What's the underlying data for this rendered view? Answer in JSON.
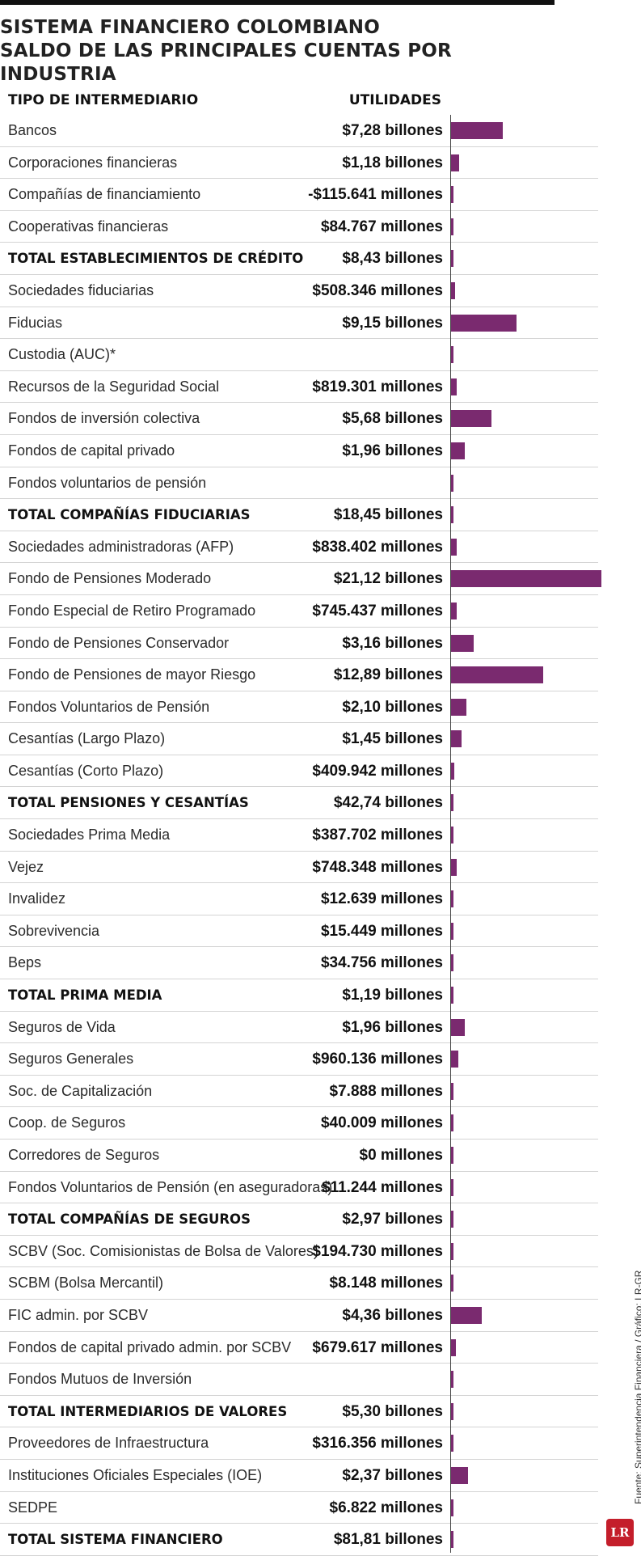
{
  "title": {
    "line1": "SISTEMA FINANCIERO COLOMBIANO",
    "line2": "SALDO DE LAS PRINCIPALES CUENTAS POR INDUSTRIA"
  },
  "headers": {
    "type": "TIPO DE INTERMEDIARIO",
    "utilities": "UTILIDADES"
  },
  "source": "Fuente: Superintendencia Financiera / Gráfico: LR-GR",
  "logo": "LR",
  "colors": {
    "bar": "#7a2a6f",
    "logo": "#c41e2b"
  },
  "chart_data": {
    "type": "bar",
    "orientation": "horizontal",
    "title": "SISTEMA FINANCIERO COLOMBIANO - SALDO DE LAS PRINCIPALES CUENTAS POR INDUSTRIA",
    "xlabel": "UTILIDADES (billones de pesos)",
    "ylabel": "TIPO DE INTERMEDIARIO",
    "xlim": [
      0,
      21.12
    ],
    "rows": [
      {
        "label": "Bancos",
        "value_text": "$7,28 billones",
        "value": 7.28,
        "bar": true,
        "total": false
      },
      {
        "label": "Corporaciones financieras",
        "value_text": "$1,18 billones",
        "value": 1.18,
        "bar": true,
        "total": false
      },
      {
        "label": "Compañías de financiamiento",
        "value_text": "-$115.641 millones",
        "value": -0.115641,
        "bar": true,
        "total": false
      },
      {
        "label": "Cooperativas financieras",
        "value_text": "$84.767 millones",
        "value": 0.084767,
        "bar": true,
        "total": false
      },
      {
        "label": "TOTAL ESTABLECIMIENTOS DE CRÉDITO",
        "value_text": "$8,43 billones",
        "value": 8.43,
        "bar": false,
        "total": true
      },
      {
        "label": "Sociedades fiduciarias",
        "value_text": "$508.346 millones",
        "value": 0.508346,
        "bar": true,
        "total": false
      },
      {
        "label": "Fiducias",
        "value_text": "$9,15 billones",
        "value": 9.15,
        "bar": true,
        "total": false
      },
      {
        "label": "Custodia (AUC)*",
        "value_text": "",
        "value": 0,
        "bar": false,
        "total": false
      },
      {
        "label": "Recursos de la Seguridad Social",
        "value_text": "$819.301 millones",
        "value": 0.819301,
        "bar": true,
        "total": false
      },
      {
        "label": "Fondos de inversión colectiva",
        "value_text": "$5,68 billones",
        "value": 5.68,
        "bar": true,
        "total": false
      },
      {
        "label": "Fondos de capital privado",
        "value_text": "$1,96 billones",
        "value": 1.96,
        "bar": true,
        "total": false
      },
      {
        "label": "Fondos voluntarios de pensión",
        "value_text": "",
        "value": 0,
        "bar": false,
        "total": false
      },
      {
        "label": "TOTAL COMPAÑÍAS FIDUCIARIAS",
        "value_text": "$18,45 billones",
        "value": 18.45,
        "bar": false,
        "total": true
      },
      {
        "label": "Sociedades administradoras (AFP)",
        "value_text": "$838.402 millones",
        "value": 0.838402,
        "bar": true,
        "total": false
      },
      {
        "label": "Fondo de Pensiones Moderado",
        "value_text": "$21,12 billones",
        "value": 21.12,
        "bar": true,
        "total": false
      },
      {
        "label": "Fondo Especial de Retiro Programado",
        "value_text": "$745.437 millones",
        "value": 0.745437,
        "bar": true,
        "total": false
      },
      {
        "label": "Fondo de Pensiones Conservador",
        "value_text": "$3,16 billones",
        "value": 3.16,
        "bar": true,
        "total": false
      },
      {
        "label": "Fondo de Pensiones de mayor Riesgo",
        "value_text": "$12,89 billones",
        "value": 12.89,
        "bar": true,
        "total": false
      },
      {
        "label": "Fondos Voluntarios de Pensión",
        "value_text": "$2,10 billones",
        "value": 2.1,
        "bar": true,
        "total": false
      },
      {
        "label": "Cesantías (Largo Plazo)",
        "value_text": "$1,45 billones",
        "value": 1.45,
        "bar": true,
        "total": false
      },
      {
        "label": "Cesantías (Corto Plazo)",
        "value_text": "$409.942 millones",
        "value": 0.409942,
        "bar": true,
        "total": false
      },
      {
        "label": "TOTAL PENSIONES Y CESANTÍAS",
        "value_text": "$42,74 billones",
        "value": 42.74,
        "bar": false,
        "total": true
      },
      {
        "label": "Sociedades Prima Media",
        "value_text": "$387.702 millones",
        "value": 0.387702,
        "bar": true,
        "total": false
      },
      {
        "label": "Vejez",
        "value_text": "$748.348 millones",
        "value": 0.748348,
        "bar": true,
        "total": false
      },
      {
        "label": "Invalidez",
        "value_text": "$12.639 millones",
        "value": 0.012639,
        "bar": true,
        "total": false
      },
      {
        "label": "Sobrevivencia",
        "value_text": "$15.449 millones",
        "value": 0.015449,
        "bar": true,
        "total": false
      },
      {
        "label": "Beps",
        "value_text": "$34.756 millones",
        "value": 0.034756,
        "bar": true,
        "total": false
      },
      {
        "label": "TOTAL PRIMA MEDIA",
        "value_text": "$1,19 billones",
        "value": 1.19,
        "bar": false,
        "total": true
      },
      {
        "label": "Seguros de Vida",
        "value_text": "$1,96 billones",
        "value": 1.96,
        "bar": true,
        "total": false
      },
      {
        "label": "Seguros Generales",
        "value_text": "$960.136 millones",
        "value": 0.960136,
        "bar": true,
        "total": false
      },
      {
        "label": "Soc. de Capitalización",
        "value_text": "$7.888 millones",
        "value": 0.007888,
        "bar": true,
        "total": false
      },
      {
        "label": "Coop. de Seguros",
        "value_text": "$40.009 millones",
        "value": 0.040009,
        "bar": true,
        "total": false
      },
      {
        "label": "Corredores de Seguros",
        "value_text": "$0 millones",
        "value": 0,
        "bar": true,
        "total": false
      },
      {
        "label": "Fondos Voluntarios de Pensión (en aseguradoras)",
        "value_text": "$11.244 millones",
        "value": 0.011244,
        "bar": true,
        "total": false
      },
      {
        "label": "TOTAL COMPAÑÍAS DE SEGUROS",
        "value_text": "$2,97 billones",
        "value": 2.97,
        "bar": false,
        "total": true
      },
      {
        "label": "SCBV (Soc. Comisionistas de Bolsa de Valores)",
        "value_text": "$194.730 millones",
        "value": 0.19473,
        "bar": true,
        "total": false
      },
      {
        "label": "SCBM (Bolsa Mercantil)",
        "value_text": "$8.148 millones",
        "value": 0.008148,
        "bar": true,
        "total": false
      },
      {
        "label": "FIC admin. por SCBV",
        "value_text": "$4,36 billones",
        "value": 4.36,
        "bar": true,
        "total": false
      },
      {
        "label": "Fondos de capital privado admin. por SCBV",
        "value_text": "$679.617 millones",
        "value": 0.679617,
        "bar": true,
        "total": false
      },
      {
        "label": "Fondos Mutuos de Inversión",
        "value_text": "",
        "value": 0,
        "bar": false,
        "total": false
      },
      {
        "label": "TOTAL INTERMEDIARIOS DE VALORES",
        "value_text": "$5,30 billones",
        "value": 5.3,
        "bar": false,
        "total": true
      },
      {
        "label": "Proveedores de Infraestructura",
        "value_text": "$316.356 millones",
        "value": 0.316356,
        "bar": true,
        "total": false
      },
      {
        "label": "Instituciones Oficiales Especiales (IOE)",
        "value_text": "$2,37 billones",
        "value": 2.37,
        "bar": true,
        "total": false
      },
      {
        "label": "SEDPE",
        "value_text": "$6.822 millones",
        "value": 0.006822,
        "bar": true,
        "total": false
      },
      {
        "label": "TOTAL SISTEMA FINANCIERO",
        "value_text": "$81,81 billones",
        "value": 81.81,
        "bar": false,
        "total": true
      }
    ]
  }
}
